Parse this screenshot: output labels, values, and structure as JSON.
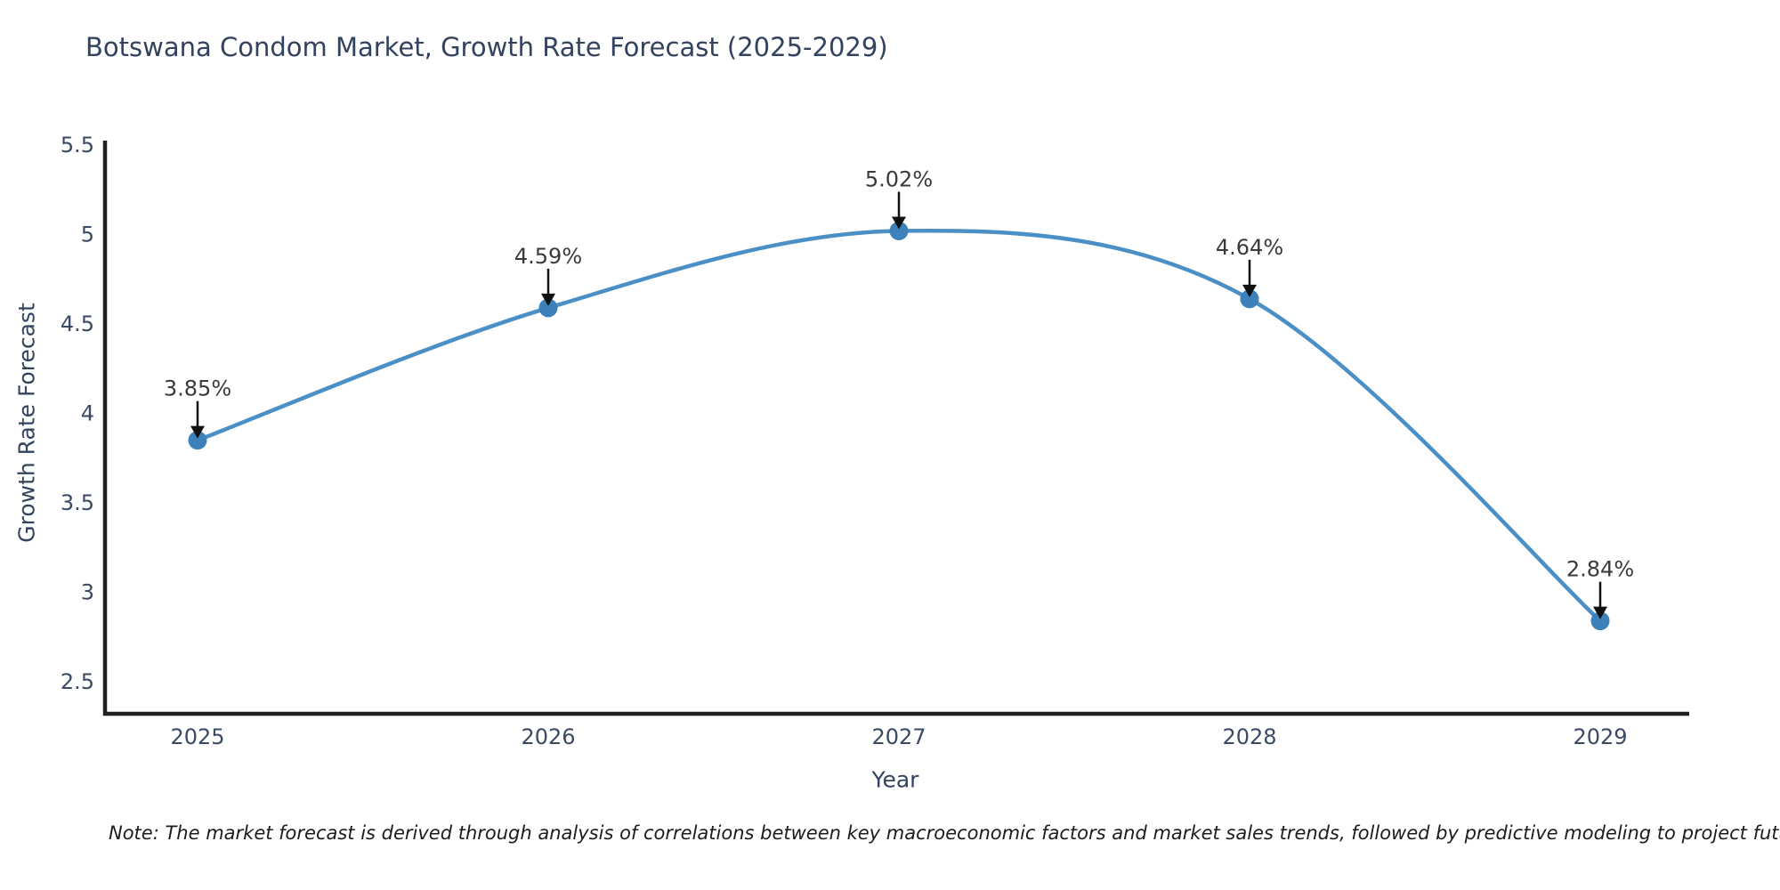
{
  "title": "Botswana Condom Market, Growth Rate Forecast (2025-2029)",
  "note": "Note: The market forecast is derived through analysis of correlations between key macroeconomic factors and market sales trends, followed by predictive modeling to project future sales",
  "chart_data": {
    "type": "line",
    "title": "Botswana Condom Market, Growth Rate Forecast (2025-2029)",
    "xlabel": "Year",
    "ylabel": "Growth Rate Forecast",
    "categories": [
      "2025",
      "2026",
      "2027",
      "2028",
      "2029"
    ],
    "values": [
      3.85,
      4.59,
      5.02,
      4.64,
      2.84
    ],
    "point_labels": [
      "3.85%",
      "4.59%",
      "5.02%",
      "4.64%",
      "2.84%"
    ],
    "ytick_values": [
      2.5,
      3,
      3.5,
      4,
      4.5,
      5,
      5.5
    ],
    "ytick_labels": [
      "2.5",
      "3",
      "3.5",
      "4",
      "4.5",
      "5",
      "5.5"
    ],
    "ylim": [
      2.32,
      5.52
    ],
    "grid": false,
    "legend": "none",
    "smooth": true,
    "line_color": "#4a8fc5",
    "marker_color": "#3d81ba",
    "arrow_color": "#111111",
    "axis_color": "#1f1f1f",
    "tick_text_color": "#3b4a63",
    "annotation_text_color": "#3a3a3a"
  }
}
